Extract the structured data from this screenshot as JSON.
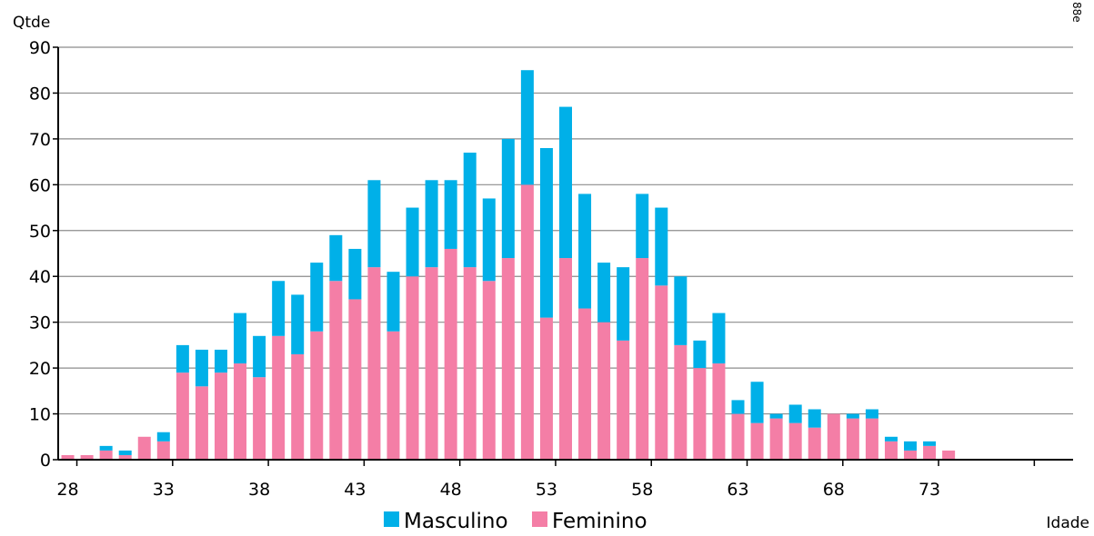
{
  "chart_data": {
    "type": "bar",
    "stacked": true,
    "ylabel": "Qtde",
    "xlabel": "Idade",
    "ylim": [
      0,
      90
    ],
    "yticks": [
      0,
      10,
      20,
      30,
      40,
      50,
      60,
      70,
      80,
      90
    ],
    "xlim": [
      27.5,
      80.5
    ],
    "xticks": [
      28,
      33,
      38,
      43,
      48,
      53,
      58,
      63,
      68,
      73
    ],
    "categories": [
      28,
      29,
      30,
      31,
      32,
      33,
      34,
      35,
      36,
      37,
      38,
      39,
      40,
      41,
      42,
      43,
      44,
      45,
      46,
      47,
      48,
      49,
      50,
      51,
      52,
      53,
      54,
      55,
      56,
      57,
      58,
      59,
      60,
      61,
      62,
      63,
      64,
      65,
      66,
      67,
      68,
      69,
      70,
      71,
      72,
      73,
      74
    ],
    "series": [
      {
        "name": "Feminino",
        "color": "#f47ea6",
        "values": [
          1,
          1,
          2,
          1,
          5,
          4,
          19,
          16,
          19,
          21,
          18,
          27,
          23,
          28,
          39,
          35,
          42,
          28,
          40,
          42,
          46,
          42,
          39,
          44,
          60,
          31,
          44,
          33,
          30,
          26,
          44,
          38,
          25,
          20,
          21,
          10,
          8,
          9,
          8,
          7,
          10,
          9,
          9,
          4,
          2,
          3,
          2
        ]
      },
      {
        "name": "Masculino",
        "color": "#00b0e8",
        "values": [
          0,
          0,
          1,
          1,
          0,
          2,
          6,
          8,
          5,
          11,
          9,
          12,
          13,
          15,
          10,
          11,
          19,
          13,
          15,
          19,
          15,
          25,
          18,
          26,
          25,
          37,
          33,
          25,
          13,
          16,
          14,
          17,
          15,
          6,
          11,
          3,
          9,
          1,
          4,
          4,
          0,
          1,
          2,
          1,
          2,
          1,
          0
        ]
      }
    ],
    "legend": {
      "position": "bottom",
      "items": [
        "Masculino",
        "Feminino"
      ]
    },
    "grid": "horizontal",
    "corner_note": "88e"
  }
}
